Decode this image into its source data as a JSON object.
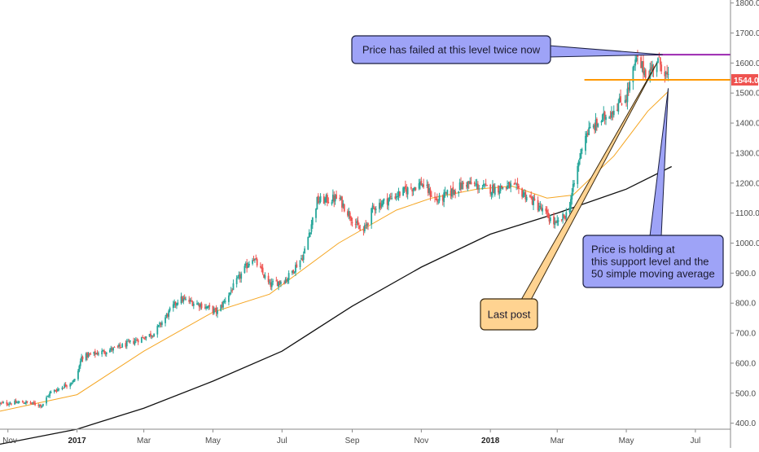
{
  "chart_data": {
    "type": "candlestick",
    "y_axis": {
      "position": "right",
      "ylim": [
        380,
        1810
      ],
      "ticks": [
        "400.0",
        "500.0",
        "600.0",
        "700.0",
        "800.0",
        "900.0",
        "1000.0",
        "1100.0",
        "1200.0",
        "1300.0",
        "1400.0",
        "1500.0",
        "1600.0",
        "1700.0",
        "1800.0"
      ]
    },
    "x_axis": {
      "start": "2016-10-25",
      "end": "2018-08-01",
      "ticks": [
        {
          "label": "Nov",
          "date": "2016-11-01",
          "bold": false
        },
        {
          "label": "2017",
          "date": "2017-01-01",
          "bold": true
        },
        {
          "label": "Mar",
          "date": "2017-03-01",
          "bold": false
        },
        {
          "label": "May",
          "date": "2017-05-01",
          "bold": false
        },
        {
          "label": "Jul",
          "date": "2017-07-01",
          "bold": false
        },
        {
          "label": "Sep",
          "date": "2017-09-01",
          "bold": false
        },
        {
          "label": "Nov",
          "date": "2017-11-01",
          "bold": false
        },
        {
          "label": "2018",
          "date": "2018-01-01",
          "bold": true
        },
        {
          "label": "Mar",
          "date": "2018-03-01",
          "bold": false
        },
        {
          "label": "May",
          "date": "2018-05-01",
          "bold": false
        },
        {
          "label": "Jul",
          "date": "2018-07-01",
          "bold": false
        }
      ]
    },
    "price_keypoints": [
      [
        "2016-10-25",
        465
      ],
      [
        "2016-11-15",
        470
      ],
      [
        "2016-12-01",
        460
      ],
      [
        "2016-12-08",
        500
      ],
      [
        "2016-12-31",
        545
      ],
      [
        "2017-01-05",
        620
      ],
      [
        "2017-02-05",
        650
      ],
      [
        "2017-03-10",
        700
      ],
      [
        "2017-04-01",
        815
      ],
      [
        "2017-04-20",
        795
      ],
      [
        "2017-05-05",
        770
      ],
      [
        "2017-05-20",
        860
      ],
      [
        "2017-06-05",
        955
      ],
      [
        "2017-06-20",
        860
      ],
      [
        "2017-07-05",
        880
      ],
      [
        "2017-07-20",
        960
      ],
      [
        "2017-08-01",
        1140
      ],
      [
        "2017-08-20",
        1150
      ],
      [
        "2017-09-10",
        1030
      ],
      [
        "2017-09-20",
        1120
      ],
      [
        "2017-10-10",
        1160
      ],
      [
        "2017-11-01",
        1200
      ],
      [
        "2017-11-15",
        1140
      ],
      [
        "2017-12-10",
        1200
      ],
      [
        "2017-12-31",
        1180
      ],
      [
        "2018-01-20",
        1190
      ],
      [
        "2018-02-05",
        1150
      ],
      [
        "2018-02-28",
        1060
      ],
      [
        "2018-03-10",
        1100
      ],
      [
        "2018-03-15",
        1180
      ],
      [
        "2018-03-25",
        1360
      ],
      [
        "2018-04-15",
        1430
      ],
      [
        "2018-05-01",
        1490
      ],
      [
        "2018-05-10",
        1610
      ],
      [
        "2018-05-20",
        1560
      ],
      [
        "2018-05-28",
        1610
      ],
      [
        "2018-06-02",
        1590
      ],
      [
        "2018-06-07",
        1544
      ]
    ],
    "sma_200_keypoints": [
      [
        "2016-10-25",
        330
      ],
      [
        "2017-01-01",
        380
      ],
      [
        "2017-03-01",
        450
      ],
      [
        "2017-05-01",
        540
      ],
      [
        "2017-07-01",
        640
      ],
      [
        "2017-09-01",
        790
      ],
      [
        "2017-11-01",
        920
      ],
      [
        "2018-01-01",
        1030
      ],
      [
        "2018-03-01",
        1100
      ],
      [
        "2018-05-01",
        1180
      ],
      [
        "2018-06-10",
        1255
      ]
    ],
    "sma_50_keypoints": [
      [
        "2016-10-25",
        440
      ],
      [
        "2017-01-01",
        495
      ],
      [
        "2017-03-01",
        640
      ],
      [
        "2017-05-01",
        770
      ],
      [
        "2017-06-20",
        830
      ],
      [
        "2017-08-20",
        1000
      ],
      [
        "2017-10-10",
        1110
      ],
      [
        "2017-11-10",
        1150
      ],
      [
        "2017-12-20",
        1180
      ],
      [
        "2018-01-20",
        1190
      ],
      [
        "2018-02-20",
        1150
      ],
      [
        "2018-03-15",
        1160
      ],
      [
        "2018-04-20",
        1290
      ],
      [
        "2018-05-20",
        1440
      ],
      [
        "2018-06-07",
        1505
      ]
    ],
    "levels": [
      {
        "name": "resistance",
        "value": 1628,
        "from": "2018-05-01",
        "color": "#9c27b0"
      },
      {
        "name": "support",
        "value": 1544,
        "from": "2018-03-25",
        "color": "#ff9800"
      }
    ],
    "last_price": {
      "value": 1544,
      "label": "1544.0",
      "color": "#ef5350"
    },
    "annotations": [
      {
        "text": [
          "Price has failed at this level twice now"
        ],
        "fill": "#9ea3f7",
        "stroke": "#1b1f40",
        "target": [
          "2018-06-02",
          1628
        ]
      },
      {
        "text": [
          "Price is holding at",
          "this support level and the",
          "50 simple moving average"
        ],
        "fill": "#9ea3f7",
        "stroke": "#1b1f40",
        "target": [
          "2018-06-07",
          1515
        ]
      },
      {
        "text": [
          "Last post"
        ],
        "fill": "#ffd391",
        "stroke": "#3a2a10",
        "target": [
          "2018-05-28",
          1600
        ]
      }
    ],
    "colors": {
      "up": "#26a69a",
      "down": "#ef5350",
      "sma_50": "#f5a623",
      "sma_200": "#111111",
      "axis": "#8a8a8a",
      "background": "#ffffff"
    },
    "grid": false
  }
}
